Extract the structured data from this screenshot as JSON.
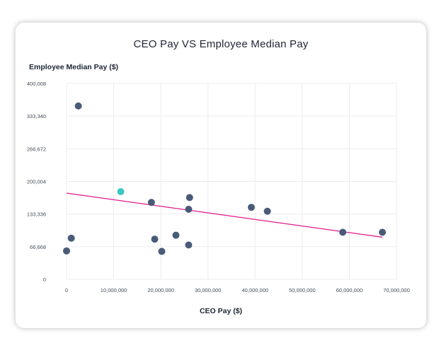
{
  "chart_data": {
    "type": "scatter",
    "title": "CEO Pay VS Employee Median Pay",
    "xlabel": "CEO Pay ($)",
    "ylabel": "Employee Median Pay ($)",
    "xlim": [
      0,
      70000000
    ],
    "ylim": [
      0,
      400008
    ],
    "x_ticks": [
      0,
      10000000,
      20000000,
      30000000,
      40000000,
      50000000,
      60000000,
      70000000
    ],
    "x_tick_labels": [
      "0",
      "10,000,000",
      "20,000,000",
      "30,000,000",
      "40,000,000",
      "50,000,000",
      "60,000,000",
      "70,000,000"
    ],
    "y_ticks": [
      0,
      66668,
      133336,
      200004,
      266672,
      333340,
      400008
    ],
    "y_tick_labels": [
      "0",
      "66,668",
      "133,336",
      "200,004",
      "266,672",
      "333,340",
      "400,008"
    ],
    "grid": true,
    "point_color": "#4a5b78",
    "highlight_color": "#3ec6c6",
    "trend_color": "#e0198c",
    "points": [
      {
        "x": 0,
        "y": 58000,
        "highlight": false
      },
      {
        "x": 1000000,
        "y": 84000,
        "highlight": false
      },
      {
        "x": 2500000,
        "y": 354000,
        "highlight": false
      },
      {
        "x": 11500000,
        "y": 179000,
        "highlight": true
      },
      {
        "x": 18000000,
        "y": 157000,
        "highlight": false
      },
      {
        "x": 18700000,
        "y": 82000,
        "highlight": false
      },
      {
        "x": 20200000,
        "y": 57000,
        "highlight": false
      },
      {
        "x": 23200000,
        "y": 90000,
        "highlight": false
      },
      {
        "x": 25900000,
        "y": 70000,
        "highlight": false
      },
      {
        "x": 25900000,
        "y": 143000,
        "highlight": false
      },
      {
        "x": 26100000,
        "y": 167000,
        "highlight": false
      },
      {
        "x": 39200000,
        "y": 147000,
        "highlight": false
      },
      {
        "x": 42600000,
        "y": 139000,
        "highlight": false
      },
      {
        "x": 58600000,
        "y": 96000,
        "highlight": false
      },
      {
        "x": 67000000,
        "y": 96000,
        "highlight": false
      }
    ],
    "trendline": {
      "x": [
        0,
        67000000
      ],
      "y": [
        176000,
        86000
      ]
    }
  }
}
